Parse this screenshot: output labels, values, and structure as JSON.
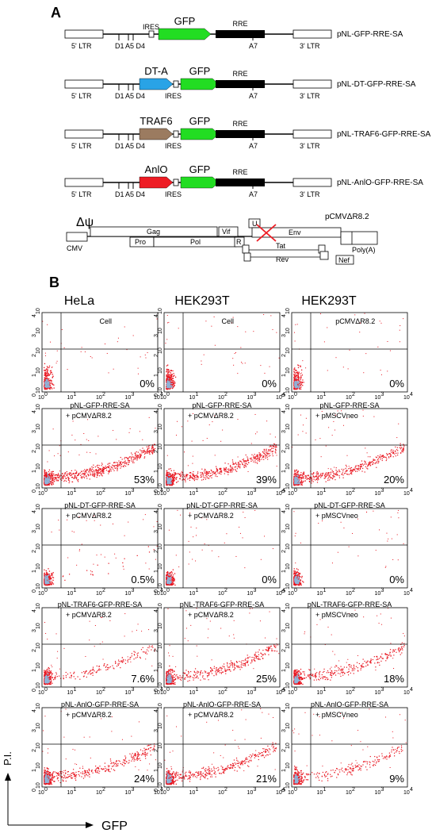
{
  "panel_a_label": "A",
  "panel_b_label": "B",
  "constructs": [
    {
      "name": "pNL-GFP-RRE-SA",
      "insert_label": "",
      "insert_color": "",
      "gene_label": "GFP",
      "ires_label": "IRES",
      "rre_label": "RRE",
      "ltr5": "5' LTR",
      "ltr3": "3' LTR",
      "d1": "D1",
      "a5d4": "A5 D4",
      "a7": "A7"
    },
    {
      "name": "pNL-DT-GFP-RRE-SA",
      "insert_label": "DT-A",
      "insert_color": "#29a3e6",
      "gene_label": "GFP",
      "ires_label": "IRES",
      "rre_label": "RRE",
      "ltr5": "5' LTR",
      "ltr3": "3' LTR",
      "d1": "D1",
      "a5d4": "A5 D4",
      "a7": "A7"
    },
    {
      "name": "pNL-TRAF6-GFP-RRE-SA",
      "insert_label": "TRAF6",
      "insert_color": "#9b7b60",
      "gene_label": "GFP",
      "ires_label": "IRES",
      "rre_label": "RRE",
      "ltr5": "5' LTR",
      "ltr3": "3' LTR",
      "d1": "D1",
      "a5d4": "A5 D4",
      "a7": "A7"
    },
    {
      "name": "pNL-AnlO-GFP-RRE-SA",
      "insert_label": "AnlO",
      "insert_color": "#ee1c24",
      "gene_label": "GFP",
      "ires_label": "IRES",
      "rre_label": "RRE",
      "ltr5": "5' LTR",
      "ltr3": "3' LTR",
      "d1": "D1",
      "a5d4": "A5 D4",
      "a7": "A7"
    }
  ],
  "packaging": {
    "name": "pCMVΔR8.2",
    "delta_psi": "Δψ",
    "cmv": "CMV",
    "gag": "Gag",
    "pro": "Pro",
    "pol": "Pol",
    "vif": "Vif",
    "r": "R",
    "u": "U",
    "env": "Env",
    "tat": "Tat",
    "rev": "Rev",
    "nef": "Nef",
    "polya": "Poly(A)"
  },
  "columns": [
    "HeLa",
    "HEK293T",
    "HEK293T"
  ],
  "axis_y_label": "P.I.",
  "axis_x_label": "GFP",
  "tick_labels": [
    "10",
    "10",
    "10",
    "10",
    "10"
  ],
  "tick_exponents": [
    "0",
    "1",
    "2",
    "3",
    "4"
  ],
  "plots": [
    [
      {
        "line1": "Cell",
        "line2": "",
        "percent": "0%"
      },
      {
        "line1": "Cell",
        "line2": "",
        "percent": "0%"
      },
      {
        "line1": "pCMVΔR8.2",
        "line2": "",
        "percent": "0%"
      }
    ],
    [
      {
        "line1": "pNL-GFP-RRE-SA",
        "line2": "+ pCMVΔR8.2",
        "percent": "53%"
      },
      {
        "line1": "pNL-GFP-RRE-SA",
        "line2": "+ pCMVΔR8.2",
        "percent": "39%"
      },
      {
        "line1": "pNL-GFP-RRE-SA",
        "line2": "+ pMSCVneo",
        "percent": "20%"
      }
    ],
    [
      {
        "line1": "pNL-DT-GFP-RRE-SA",
        "line2": "+ pCMVΔR8.2",
        "percent": "0.5%"
      },
      {
        "line1": "pNL-DT-GFP-RRE-SA",
        "line2": "+ pCMVΔR8.2",
        "percent": "0%"
      },
      {
        "line1": "pNL-DT-GFP-RRE-SA",
        "line2": "+ pMSCVneo",
        "percent": "0%"
      }
    ],
    [
      {
        "line1": "pNL-TRAF6-GFP-RRE-SA",
        "line2": "+ pCMVΔR8.2",
        "percent": "7.6%"
      },
      {
        "line1": "pNL-TRAF6-GFP-RRE-SA",
        "line2": "+ pCMVΔR8.2",
        "percent": "25%"
      },
      {
        "line1": "pNL-TRAF6-GFP-RRE-SA",
        "line2": "+ pMSCVneo",
        "percent": "18%"
      }
    ],
    [
      {
        "line1": "pNL-AnlO-GFP-RRE-SA",
        "line2": "+ pCMVΔR8.2",
        "percent": "24%"
      },
      {
        "line1": "pNL-AnlO-GFP-RRE-SA",
        "line2": "+ pCMVΔR8.2",
        "percent": "21%"
      },
      {
        "line1": "pNL-AnlO-GFP-RRE-SA",
        "line2": "+ pMSCVneo",
        "percent": "9%"
      }
    ]
  ],
  "colors": {
    "gfp": "#22dd22",
    "rre": "#000000",
    "dots": "#e8141e",
    "dense": "#8fb3d8"
  }
}
